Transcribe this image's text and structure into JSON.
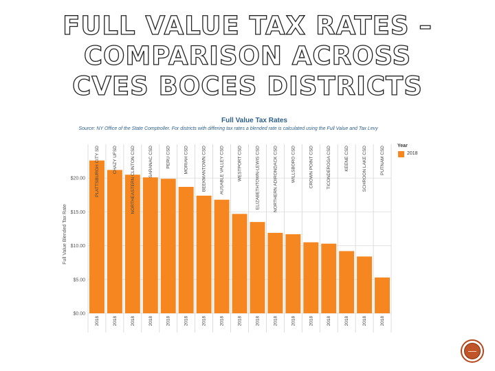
{
  "slide": {
    "title_lines": [
      "FULL VALUE TAX RATES –",
      "COMPARISON ACROSS",
      "CVES BOCES DISTRICTS"
    ]
  },
  "chart_data": {
    "type": "bar",
    "title": "Full Value Tax Rates",
    "subtitle": "Source: NY Office of the State Comptroller. For districts with differing tax rates a blended rate is calculated using the Full Value and Tax Levy",
    "ylabel": "Full Value Blended Tax Rate",
    "ylim": [
      0,
      25
    ],
    "yticks": [
      "$0.00",
      "$5.00",
      "$10.00",
      "$15.00",
      "$20.00"
    ],
    "ytick_values": [
      0,
      5,
      10,
      15,
      20
    ],
    "grid": true,
    "legend": {
      "title": "Year",
      "placement": "top-right",
      "entries": [
        "2018"
      ]
    },
    "color": "#f6861f",
    "categories": [
      "PLATTSBURGH CITY SD",
      "CHAZY UFSD",
      "NORTHEASTERN CLINTON CSD",
      "SARANAC CSD",
      "PERU CSD",
      "MORIAH CSD",
      "BEEKMANTOWN CSD",
      "AUSABLE VALLEY CSD",
      "WESTPORT CSD",
      "ELIZABETHTOWN-LEWIS CSD",
      "NORTHERN ADIRONDACK CSD",
      "WILLSBORO CSD",
      "CROWN POINT CSD",
      "TICONDEROGA CSD",
      "KEENE CSD",
      "SCHROON LAKE CSD",
      "PUTNAM CSD"
    ],
    "x_labels": [
      "2018",
      "2018",
      "2018",
      "2018",
      "2018",
      "2018",
      "2018",
      "2018",
      "2018",
      "2018",
      "2018",
      "2018",
      "2018",
      "2018",
      "2018",
      "2018",
      "2018"
    ],
    "series": [
      {
        "name": "2018",
        "values": [
          22.6,
          21.2,
          20.5,
          20.1,
          19.9,
          18.7,
          17.4,
          16.8,
          14.7,
          13.5,
          11.9,
          11.7,
          10.5,
          10.3,
          9.2,
          8.4,
          5.3
        ]
      }
    ]
  }
}
